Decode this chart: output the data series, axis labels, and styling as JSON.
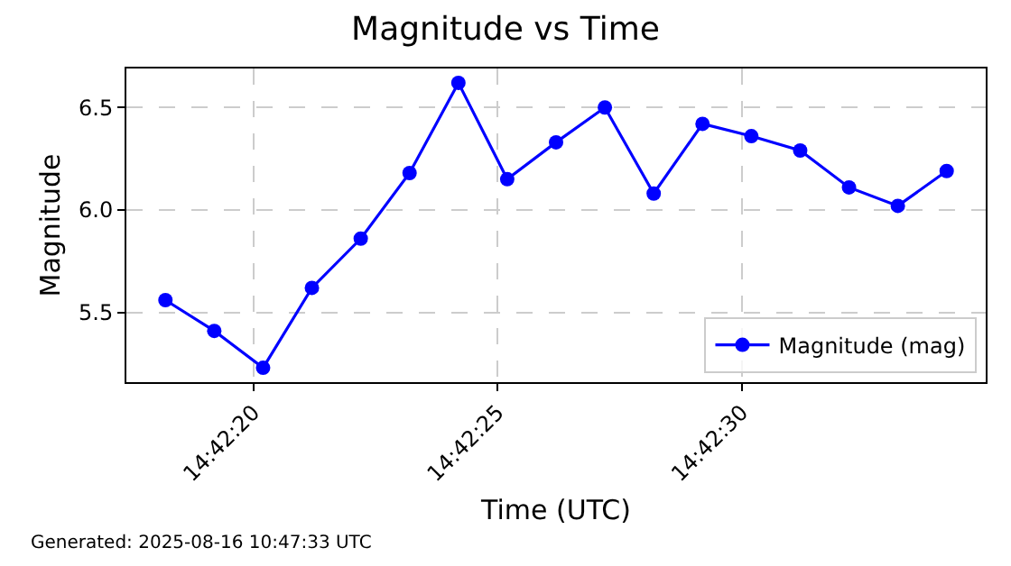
{
  "chart_data": {
    "type": "line",
    "title": "Magnitude vs Time",
    "xlabel": "Time (UTC)",
    "ylabel": "Magnitude",
    "x": [
      "2025-08-16T14:42:18.2",
      "2025-08-16T14:42:19.2",
      "2025-08-16T14:42:20.2",
      "2025-08-16T14:42:21.2",
      "2025-08-16T14:42:22.2",
      "2025-08-16T14:42:23.2",
      "2025-08-16T14:42:24.2",
      "2025-08-16T14:42:25.2",
      "2025-08-16T14:42:26.2",
      "2025-08-16T14:42:27.2",
      "2025-08-16T14:42:28.2",
      "2025-08-16T14:42:29.2",
      "2025-08-16T14:42:30.2",
      "2025-08-16T14:42:31.2",
      "2025-08-16T14:42:32.2",
      "2025-08-16T14:42:33.2",
      "2025-08-16T14:42:34.2"
    ],
    "series": [
      {
        "name": "Magnitude (mag)",
        "color": "#0000ff",
        "values": [
          5.56,
          5.41,
          5.23,
          5.62,
          5.86,
          6.18,
          6.62,
          6.15,
          6.33,
          6.5,
          6.08,
          6.42,
          6.36,
          6.29,
          6.11,
          6.02,
          6.19
        ]
      }
    ],
    "xlim": [
      "2025-08-16T14:42:17.4",
      "2025-08-16T14:42:35.0"
    ],
    "xticks": [
      {
        "value": "2025-08-16T14:42:20",
        "label": "14:42:20"
      },
      {
        "value": "2025-08-16T14:42:25",
        "label": "14:42:25"
      },
      {
        "value": "2025-08-16T14:42:30",
        "label": "14:42:30"
      }
    ],
    "ylim": [
      5.16,
      6.69
    ],
    "yticks": [
      5.5,
      {
        "value": 6.0,
        "label": "6.0"
      },
      6.5
    ],
    "grid": true,
    "legend": "bottom right",
    "marker": "circle",
    "line_style": "solid",
    "annotations": [
      "Generated: 2025-08-16 10:47:33 UTC"
    ]
  }
}
